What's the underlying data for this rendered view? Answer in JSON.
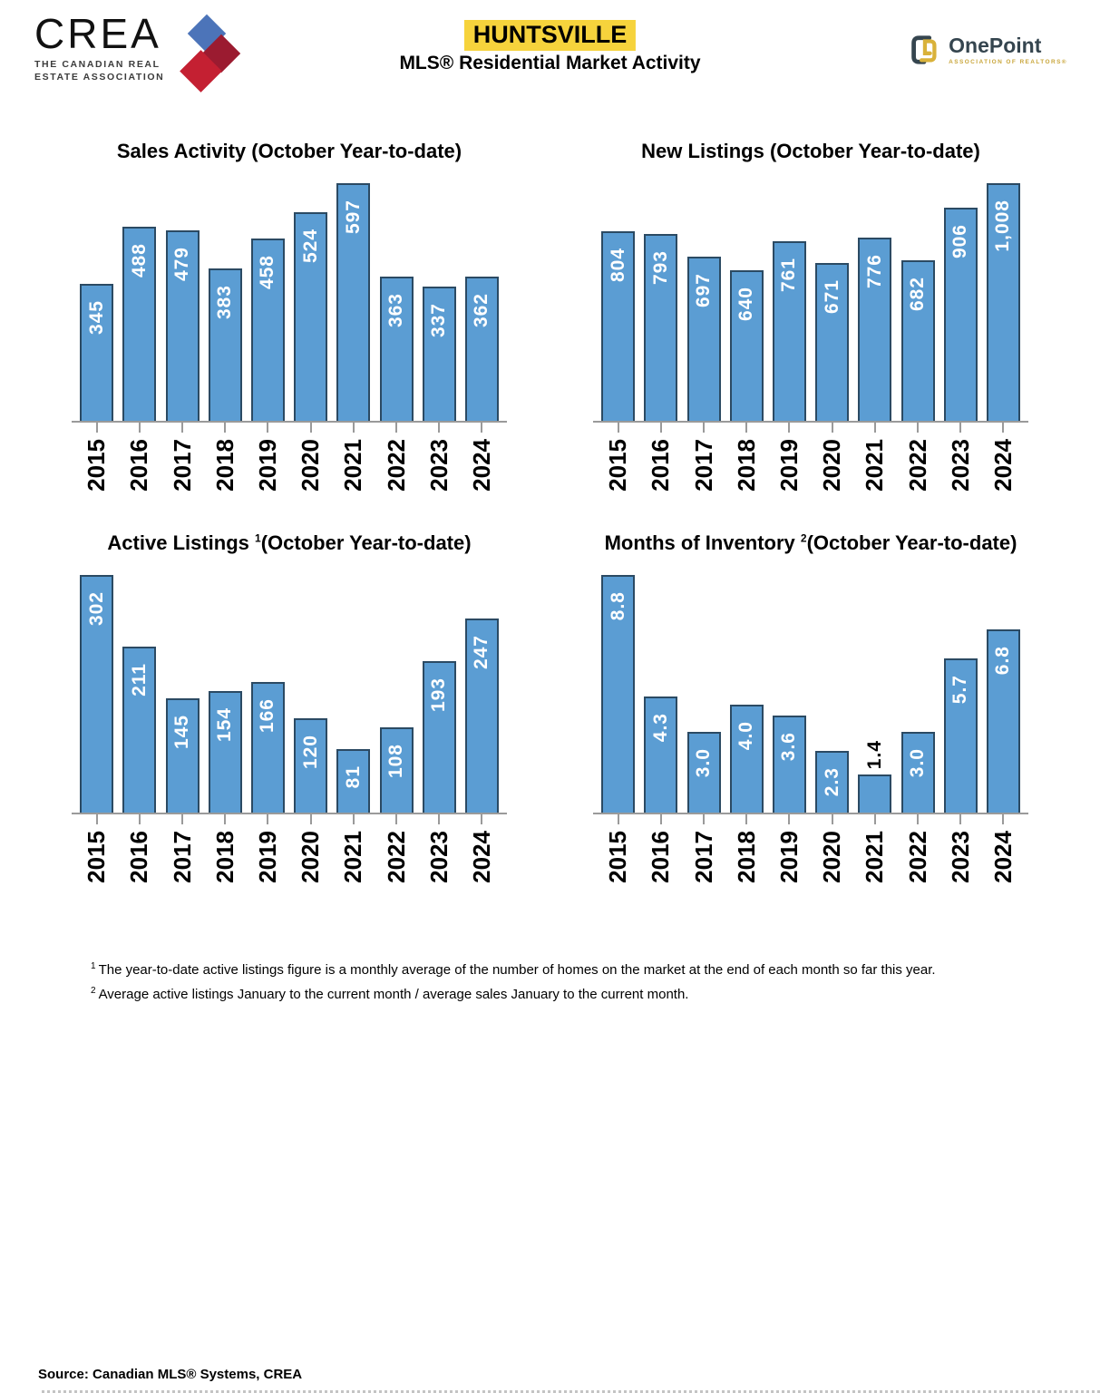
{
  "header": {
    "crea": {
      "name": "CREA",
      "subtitle_line1": "THE CANADIAN REAL",
      "subtitle_line2": "ESTATE ASSOCIATION"
    },
    "title": "HUNTSVILLE",
    "subtitle": "MLS® Residential Market Activity",
    "onepoint": {
      "name": "OnePoint",
      "subtitle": "ASSOCIATION OF REALTORS®"
    }
  },
  "colors": {
    "bar_fill": "#5b9dd3",
    "bar_border": "#2b4a63",
    "title_highlight": "#f6d33c",
    "axis": "#9a9a9a",
    "crea_blue": "#4c74b9",
    "crea_dark_red": "#9b1b30",
    "crea_red": "#c42032",
    "onepoint_navy": "#35454f",
    "onepoint_gold": "#c9a63b"
  },
  "chart_data": [
    {
      "type": "bar",
      "title": "Sales Activity (October Year-to-date)",
      "title_main": "Sales Activity ",
      "title_sup": "",
      "title_rest": "(October Year-to-date)",
      "categories": [
        "2015",
        "2016",
        "2017",
        "2018",
        "2019",
        "2020",
        "2021",
        "2022",
        "2023",
        "2024"
      ],
      "values": [
        345,
        488,
        479,
        383,
        458,
        524,
        597,
        363,
        337,
        362
      ],
      "labels": [
        "345",
        "488",
        "479",
        "383",
        "458",
        "524",
        "597",
        "363",
        "337",
        "362"
      ],
      "legend": false,
      "grid": false
    },
    {
      "type": "bar",
      "title": "New Listings (October Year-to-date)",
      "title_main": "New Listings ",
      "title_sup": "",
      "title_rest": "(October Year-to-date)",
      "categories": [
        "2015",
        "2016",
        "2017",
        "2018",
        "2019",
        "2020",
        "2021",
        "2022",
        "2023",
        "2024"
      ],
      "values": [
        804,
        793,
        697,
        640,
        761,
        671,
        776,
        682,
        906,
        1008
      ],
      "labels": [
        "804",
        "793",
        "697",
        "640",
        "761",
        "671",
        "776",
        "682",
        "906",
        "1,008"
      ],
      "legend": false,
      "grid": false
    },
    {
      "type": "bar",
      "title": "Active Listings ¹(October Year-to-date)",
      "title_main": "Active Listings ",
      "title_sup": "1",
      "title_rest": "(October Year-to-date)",
      "categories": [
        "2015",
        "2016",
        "2017",
        "2018",
        "2019",
        "2020",
        "2021",
        "2022",
        "2023",
        "2024"
      ],
      "values": [
        302,
        211,
        145,
        154,
        166,
        120,
        81,
        108,
        193,
        247
      ],
      "labels": [
        "302",
        "211",
        "145",
        "154",
        "166",
        "120",
        "81",
        "108",
        "193",
        "247"
      ],
      "legend": false,
      "grid": false
    },
    {
      "type": "bar",
      "title": "Months of Inventory ²(October Year-to-date)",
      "title_main": "Months of Inventory ",
      "title_sup": "2",
      "title_rest": "(October Year-to-date)",
      "categories": [
        "2015",
        "2016",
        "2017",
        "2018",
        "2019",
        "2020",
        "2021",
        "2022",
        "2023",
        "2024"
      ],
      "values": [
        8.8,
        4.3,
        3.0,
        4.0,
        3.6,
        2.3,
        1.4,
        3.0,
        5.7,
        6.8
      ],
      "labels": [
        "8.8",
        "4.3",
        "3.0",
        "4.0",
        "3.6",
        "2.3",
        "1.4",
        "3.0",
        "5.7",
        "6.8"
      ],
      "legend": false,
      "grid": false
    }
  ],
  "footnotes": [
    {
      "sup": "1",
      "text": "The year-to-date active listings figure is a monthly average of the number of homes on the market at the end of each month so far this year."
    },
    {
      "sup": "2",
      "text": "Average active listings January to the current month / average sales January to the current month."
    }
  ],
  "source": "Source: Canadian MLS® Systems, CREA"
}
